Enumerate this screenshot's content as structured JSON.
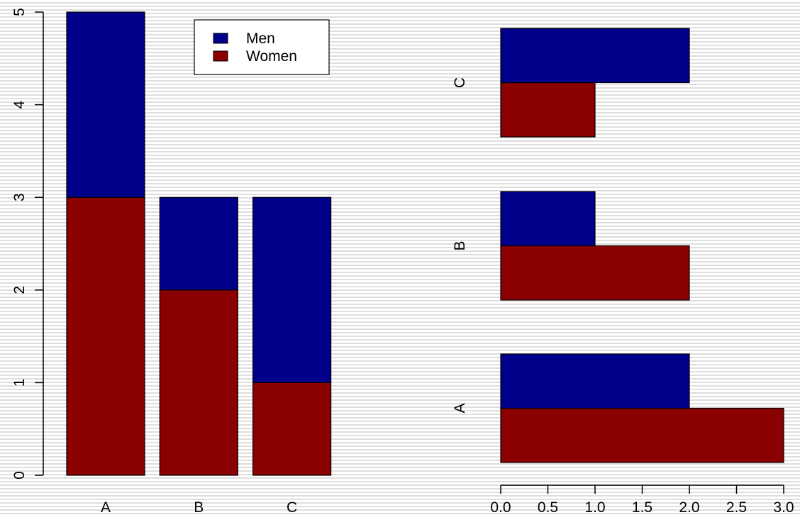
{
  "colors": {
    "men": "#00008b",
    "women": "#8b0000",
    "axis": "#000000"
  },
  "chart_data": [
    {
      "type": "bar",
      "orientation": "vertical",
      "stacked": true,
      "categories": [
        "A",
        "B",
        "C"
      ],
      "series": [
        {
          "name": "Women",
          "values": [
            3,
            2,
            1
          ],
          "color": "#8b0000"
        },
        {
          "name": "Men",
          "values": [
            2,
            1,
            2
          ],
          "color": "#00008b"
        }
      ],
      "ylim": [
        0,
        5
      ],
      "yticks": [
        "0",
        "1",
        "2",
        "3",
        "4",
        "5"
      ],
      "legend": {
        "placement": "top-right",
        "entries": [
          "Men",
          "Women"
        ]
      },
      "grid": false
    },
    {
      "type": "bar",
      "orientation": "horizontal",
      "stacked": false,
      "categories": [
        "A",
        "B",
        "C"
      ],
      "series": [
        {
          "name": "Women",
          "values": [
            3,
            2,
            1
          ],
          "color": "#8b0000"
        },
        {
          "name": "Men",
          "values": [
            2,
            1,
            2
          ],
          "color": "#00008b"
        }
      ],
      "xlim": [
        0,
        3
      ],
      "xticks": [
        "0.0",
        "0.5",
        "1.0",
        "1.5",
        "2.0",
        "2.5",
        "3.0"
      ],
      "grid": false
    }
  ]
}
